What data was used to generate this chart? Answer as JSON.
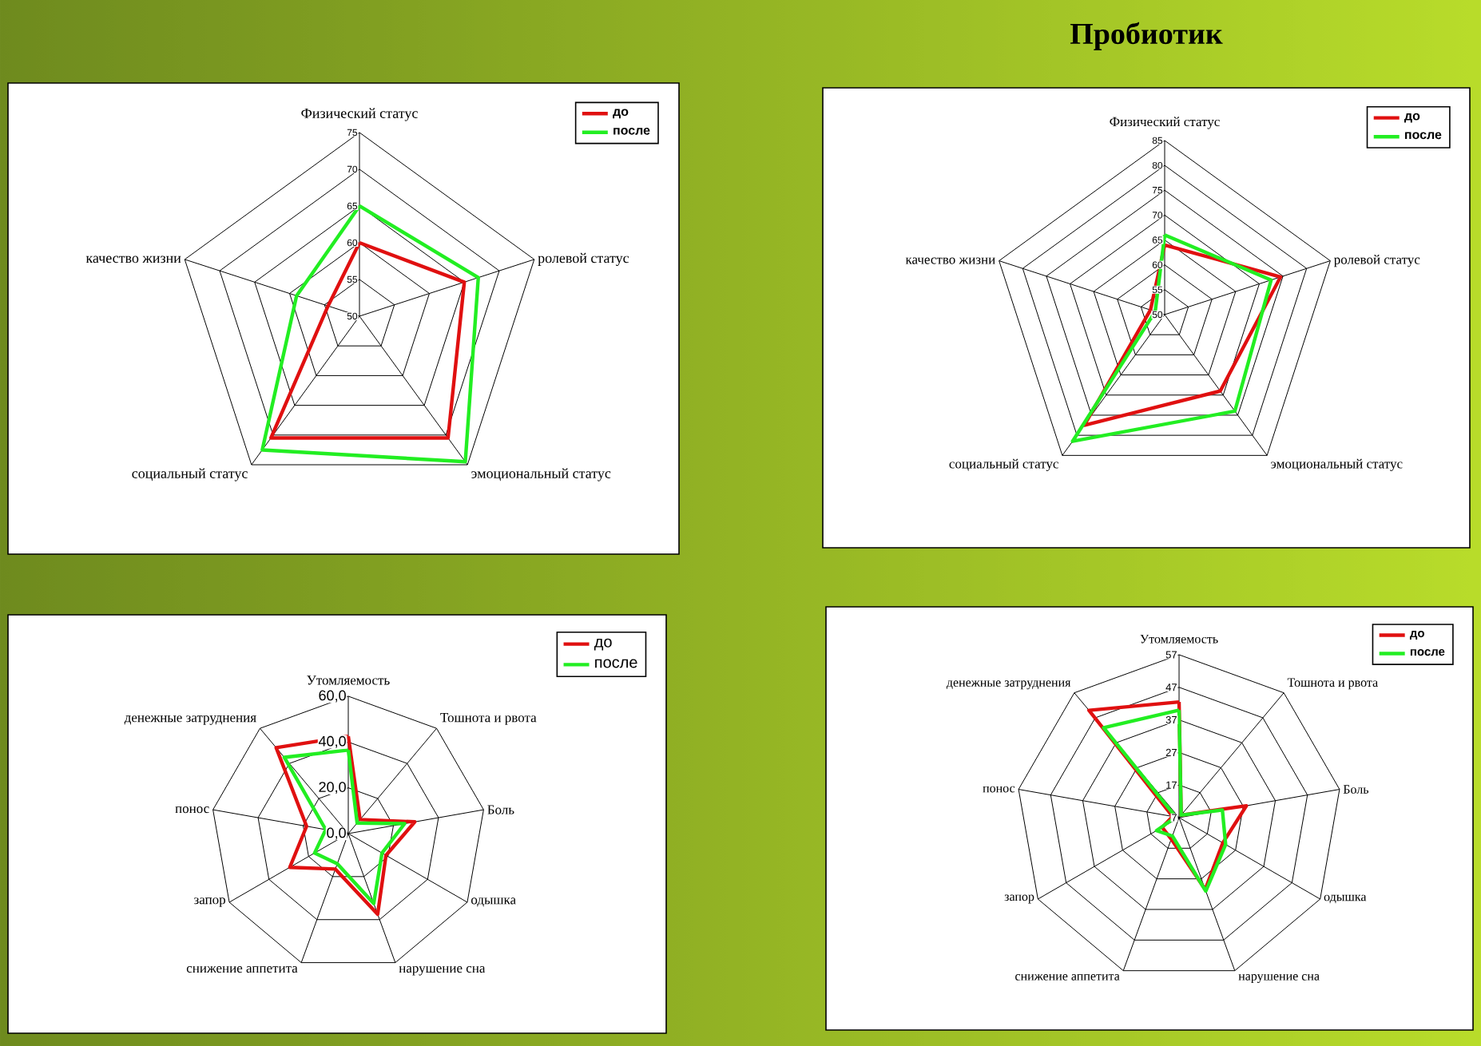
{
  "chart_data": [
    {
      "type": "radar",
      "categories": [
        "Физический статус",
        "ролевой статус",
        "эмоциональный статус",
        "социальный статус",
        "качество жизни"
      ],
      "ylim": [
        50,
        75
      ],
      "yticks": [
        50,
        55,
        60,
        65,
        70,
        75
      ],
      "grid": true,
      "legend": "top right",
      "series": [
        {
          "name": "до",
          "color": "#e01010",
          "values": [
            60,
            65,
            70.5,
            70.5,
            54.5
          ]
        },
        {
          "name": "после",
          "color": "#22ee22",
          "values": [
            65,
            67,
            74.5,
            72.5,
            59
          ]
        }
      ]
    },
    {
      "type": "radar",
      "title": "Пробиотик",
      "categories": [
        "Физический статус",
        "ролевой статус",
        "эмоциональный статус",
        "социальный статус",
        "качество жизни"
      ],
      "ylim": [
        50,
        85
      ],
      "yticks": [
        50,
        55,
        60,
        65,
        70,
        75,
        80,
        85
      ],
      "grid": true,
      "legend": "top right",
      "series": [
        {
          "name": "до",
          "color": "#e01010",
          "values": [
            64,
            74.5,
            69,
            77.5,
            53
          ]
        },
        {
          "name": "после",
          "color": "#22ee22",
          "values": [
            66,
            72.5,
            74,
            81.5,
            52
          ]
        }
      ]
    },
    {
      "type": "radar",
      "categories": [
        "Утомляемость",
        "Тошнота и рвота",
        "Боль",
        "одышка",
        "нарушение сна",
        "снижение аппетита",
        "запор",
        "понос",
        "денежные затруднения"
      ],
      "ylim": [
        0,
        60
      ],
      "yticks": [
        {
          "value": 0,
          "label": "0,0"
        },
        {
          "value": 20,
          "label": "20,0"
        },
        {
          "value": 40,
          "label": "40,0"
        },
        {
          "value": 60,
          "label": "60,0"
        }
      ],
      "grid": true,
      "legend": "top right",
      "series": [
        {
          "name": "до",
          "color": "#e01010",
          "values": [
            42.5,
            8,
            29.5,
            19,
            37.5,
            16.5,
            29.5,
            18.5,
            49
          ]
        },
        {
          "name": "после",
          "color": "#22ee22",
          "values": [
            36.5,
            6,
            25,
            17,
            32.5,
            14,
            17,
            10,
            43.5
          ]
        }
      ]
    },
    {
      "type": "radar",
      "categories": [
        "Утомляемость",
        "Тошнота и рвота",
        "Боль",
        "одышка",
        "нарушение сна",
        "снижение аппетита",
        "запор",
        "понос",
        "денежные затруднения"
      ],
      "ylim": [
        7,
        57
      ],
      "yticks": [
        7,
        17,
        27,
        37,
        47,
        57
      ],
      "grid": true,
      "legend": "top right",
      "series": [
        {
          "name": "до",
          "color": "#e01010",
          "values": [
            42.5,
            8,
            28,
            22.5,
            30.5,
            14,
            13,
            9,
            50
          ]
        },
        {
          "name": "после",
          "color": "#22ee22",
          "values": [
            40,
            8,
            20.5,
            23.5,
            31,
            13,
            15,
            8,
            43
          ]
        }
      ]
    }
  ]
}
